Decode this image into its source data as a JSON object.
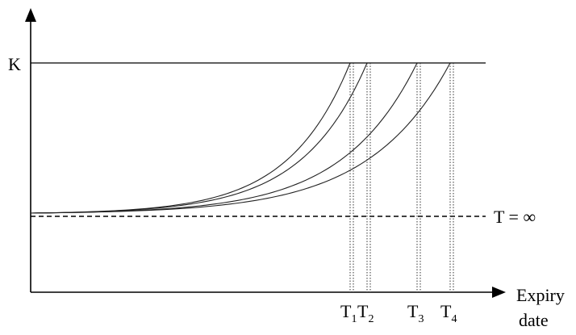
{
  "chart_data": {
    "type": "line",
    "title": "",
    "xlabel": [
      "Expiry",
      "date"
    ],
    "ylabel": "",
    "reference_lines": {
      "upper": {
        "label": "K"
      },
      "lower": {
        "label": "T = ∞"
      }
    },
    "x_ticks": [
      {
        "letter": "T",
        "sub": "1"
      },
      {
        "letter": "T",
        "sub": "2"
      },
      {
        "letter": "T",
        "sub": "3"
      },
      {
        "letter": "T",
        "sub": "4"
      }
    ],
    "series": [
      {
        "curve_order": 1
      },
      {
        "curve_order": 2
      },
      {
        "curve_order": 3
      },
      {
        "curve_order": 4
      }
    ]
  }
}
